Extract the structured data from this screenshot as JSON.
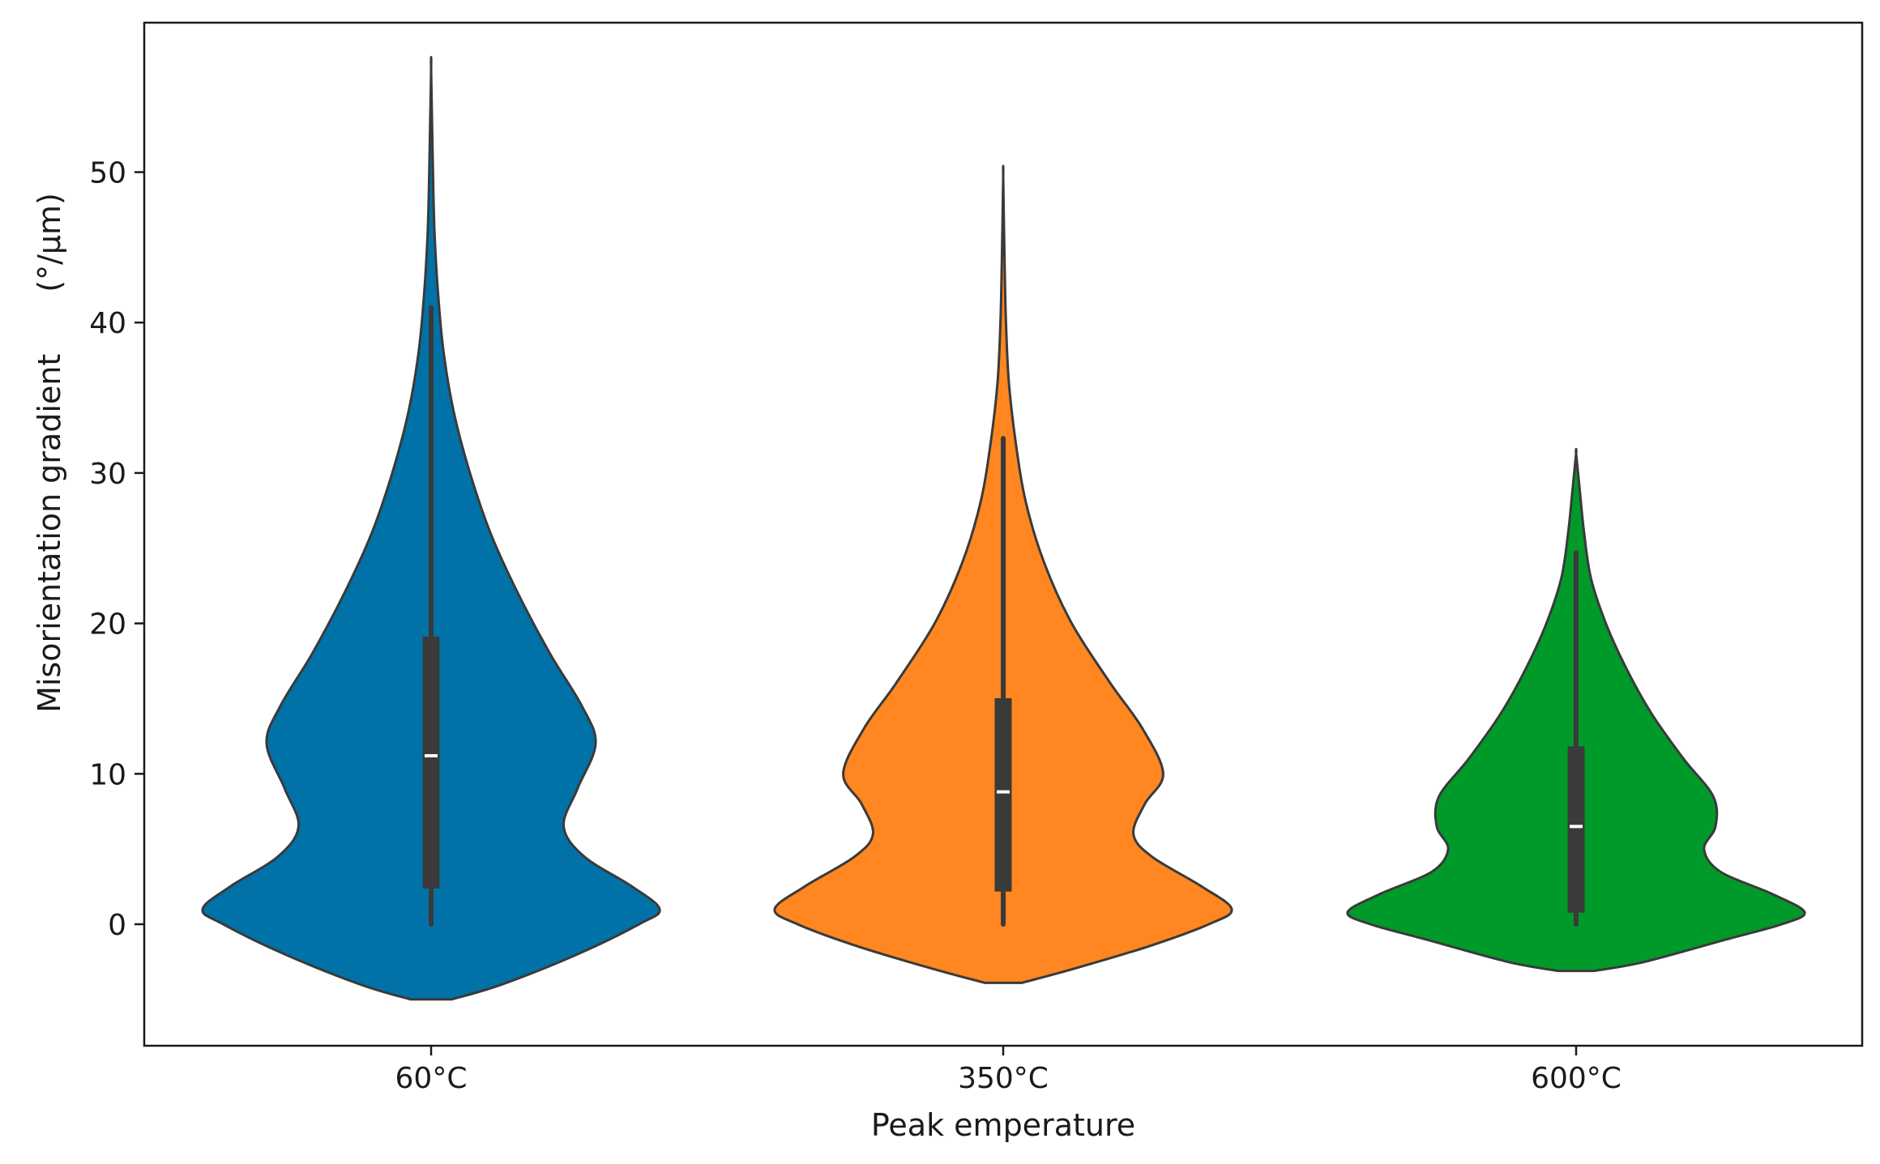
{
  "chart_data": {
    "type": "violin",
    "title": "",
    "xlabel": "Peak emperature",
    "ylabel": "Misorientation gradient  (°/μm)",
    "categories": [
      "60°C",
      "350°C",
      "600°C"
    ],
    "ylim": [
      -8,
      60
    ],
    "yticks": [
      0,
      10,
      20,
      30,
      40,
      50
    ],
    "ytick_labels": [
      "0",
      "10",
      "20",
      "30",
      "40",
      "50"
    ],
    "grid": false,
    "legend": "none",
    "series": [
      {
        "category": "60°C",
        "color": "#0072a8",
        "median": 11.2,
        "q1": 2.4,
        "q3": 19.1,
        "whisker_low": 0,
        "whisker_high": 41,
        "violin_min": -5,
        "violin_max": 56.8,
        "density_profile": [
          {
            "y": -5.0,
            "half_width": 0.09
          },
          {
            "y": -4.0,
            "half_width": 0.31
          },
          {
            "y": -2.0,
            "half_width": 0.64
          },
          {
            "y": 0.0,
            "half_width": 0.91
          },
          {
            "y": 1.0,
            "half_width": 1.0
          },
          {
            "y": 2.5,
            "half_width": 0.88
          },
          {
            "y": 4.5,
            "half_width": 0.67
          },
          {
            "y": 6.5,
            "half_width": 0.58
          },
          {
            "y": 9.0,
            "half_width": 0.64
          },
          {
            "y": 12.0,
            "half_width": 0.72
          },
          {
            "y": 14.5,
            "half_width": 0.66
          },
          {
            "y": 18.0,
            "half_width": 0.52
          },
          {
            "y": 22.0,
            "half_width": 0.38
          },
          {
            "y": 26.0,
            "half_width": 0.26
          },
          {
            "y": 30.0,
            "half_width": 0.17
          },
          {
            "y": 34.0,
            "half_width": 0.1
          },
          {
            "y": 38.0,
            "half_width": 0.055
          },
          {
            "y": 42.0,
            "half_width": 0.03
          },
          {
            "y": 46.0,
            "half_width": 0.015
          },
          {
            "y": 50.0,
            "half_width": 0.008
          },
          {
            "y": 56.8,
            "half_width": 0.0
          }
        ]
      },
      {
        "category": "350°C",
        "color": "#ff8620",
        "median": 8.8,
        "q1": 2.2,
        "q3": 15.0,
        "whisker_low": 0,
        "whisker_high": 32.3,
        "violin_min": -3.9,
        "violin_max": 49.7,
        "density_profile": [
          {
            "y": -3.9,
            "half_width": 0.08
          },
          {
            "y": -3.0,
            "half_width": 0.3
          },
          {
            "y": -1.5,
            "half_width": 0.63
          },
          {
            "y": 0.0,
            "half_width": 0.9
          },
          {
            "y": 1.0,
            "half_width": 1.0
          },
          {
            "y": 2.5,
            "half_width": 0.87
          },
          {
            "y": 4.5,
            "half_width": 0.65
          },
          {
            "y": 6.0,
            "half_width": 0.57
          },
          {
            "y": 8.0,
            "half_width": 0.62
          },
          {
            "y": 10.0,
            "half_width": 0.7
          },
          {
            "y": 13.0,
            "half_width": 0.61
          },
          {
            "y": 16.0,
            "half_width": 0.47
          },
          {
            "y": 20.0,
            "half_width": 0.3
          },
          {
            "y": 24.0,
            "half_width": 0.18
          },
          {
            "y": 28.0,
            "half_width": 0.1
          },
          {
            "y": 32.0,
            "half_width": 0.055
          },
          {
            "y": 36.0,
            "half_width": 0.025
          },
          {
            "y": 40.0,
            "half_width": 0.012
          },
          {
            "y": 44.0,
            "half_width": 0.006
          },
          {
            "y": 49.7,
            "half_width": 0.0
          }
        ]
      },
      {
        "category": "600°C",
        "color": "#009a2a",
        "median": 6.5,
        "q1": 0.8,
        "q3": 11.8,
        "whisker_low": 0,
        "whisker_high": 24.7,
        "violin_min": -3.1,
        "violin_max": 31.3,
        "density_profile": [
          {
            "y": -3.1,
            "half_width": 0.08
          },
          {
            "y": -2.5,
            "half_width": 0.3
          },
          {
            "y": -1.0,
            "half_width": 0.66
          },
          {
            "y": 0.0,
            "half_width": 0.9
          },
          {
            "y": 0.8,
            "half_width": 1.0
          },
          {
            "y": 2.0,
            "half_width": 0.86
          },
          {
            "y": 3.5,
            "half_width": 0.63
          },
          {
            "y": 5.0,
            "half_width": 0.56
          },
          {
            "y": 6.5,
            "half_width": 0.61
          },
          {
            "y": 8.5,
            "half_width": 0.6
          },
          {
            "y": 11.0,
            "half_width": 0.47
          },
          {
            "y": 14.0,
            "half_width": 0.33
          },
          {
            "y": 17.0,
            "half_width": 0.22
          },
          {
            "y": 20.0,
            "half_width": 0.13
          },
          {
            "y": 23.0,
            "half_width": 0.065
          },
          {
            "y": 26.0,
            "half_width": 0.035
          },
          {
            "y": 29.0,
            "half_width": 0.015
          },
          {
            "y": 31.3,
            "half_width": 0.0
          }
        ]
      }
    ]
  }
}
